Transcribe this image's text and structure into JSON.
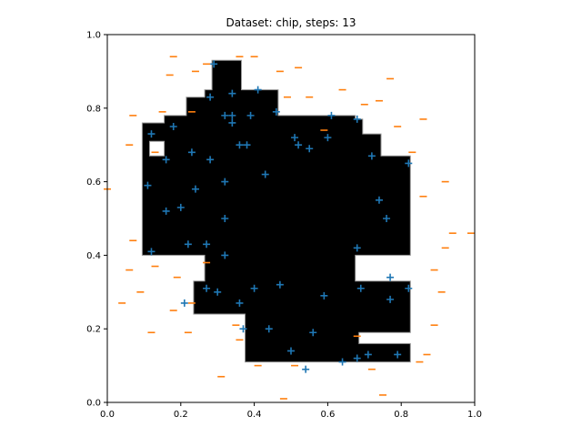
{
  "chart_data": {
    "type": "scatter",
    "title": "Dataset: chip, steps: 13",
    "xlim": [
      0.0,
      1.0
    ],
    "ylim": [
      0.0,
      1.0
    ],
    "xticks": [
      "0.0",
      "0.2",
      "0.4",
      "0.6",
      "0.8",
      "1.0"
    ],
    "yticks": [
      "0.0",
      "0.2",
      "0.4",
      "0.6",
      "0.8",
      "1.0"
    ],
    "grid": false,
    "colors": {
      "plus": "#1f77b4",
      "minus": "#ff7f0e",
      "region": "#000000",
      "region_edge": "#999999"
    },
    "decision_region": {
      "polygon": [
        [
          0.285,
          0.93
        ],
        [
          0.365,
          0.93
        ],
        [
          0.365,
          0.85
        ],
        [
          0.465,
          0.85
        ],
        [
          0.465,
          0.78
        ],
        [
          0.675,
          0.78
        ],
        [
          0.675,
          0.77
        ],
        [
          0.695,
          0.77
        ],
        [
          0.695,
          0.73
        ],
        [
          0.745,
          0.73
        ],
        [
          0.745,
          0.67
        ],
        [
          0.825,
          0.67
        ],
        [
          0.825,
          0.4
        ],
        [
          0.675,
          0.4
        ],
        [
          0.675,
          0.33
        ],
        [
          0.825,
          0.33
        ],
        [
          0.825,
          0.19
        ],
        [
          0.685,
          0.19
        ],
        [
          0.685,
          0.16
        ],
        [
          0.825,
          0.16
        ],
        [
          0.825,
          0.11
        ],
        [
          0.375,
          0.11
        ],
        [
          0.375,
          0.24
        ],
        [
          0.235,
          0.24
        ],
        [
          0.235,
          0.33
        ],
        [
          0.265,
          0.33
        ],
        [
          0.265,
          0.4
        ],
        [
          0.095,
          0.4
        ],
        [
          0.095,
          0.76
        ],
        [
          0.155,
          0.76
        ],
        [
          0.155,
          0.78
        ],
        [
          0.215,
          0.78
        ],
        [
          0.215,
          0.83
        ],
        [
          0.265,
          0.83
        ],
        [
          0.265,
          0.85
        ],
        [
          0.285,
          0.85
        ]
      ],
      "holes": [
        [
          [
            0.115,
            0.71
          ],
          [
            0.155,
            0.71
          ],
          [
            0.155,
            0.67
          ],
          [
            0.115,
            0.67
          ]
        ]
      ]
    },
    "series": [
      {
        "marker": "+",
        "points": [
          [
            0.29,
            0.92
          ],
          [
            0.41,
            0.85
          ],
          [
            0.34,
            0.84
          ],
          [
            0.28,
            0.83
          ],
          [
            0.32,
            0.78
          ],
          [
            0.34,
            0.78
          ],
          [
            0.39,
            0.78
          ],
          [
            0.46,
            0.79
          ],
          [
            0.61,
            0.78
          ],
          [
            0.68,
            0.77
          ],
          [
            0.34,
            0.76
          ],
          [
            0.18,
            0.75
          ],
          [
            0.12,
            0.73
          ],
          [
            0.6,
            0.72
          ],
          [
            0.51,
            0.72
          ],
          [
            0.52,
            0.7
          ],
          [
            0.55,
            0.69
          ],
          [
            0.36,
            0.7
          ],
          [
            0.38,
            0.7
          ],
          [
            0.23,
            0.68
          ],
          [
            0.72,
            0.67
          ],
          [
            0.28,
            0.66
          ],
          [
            0.16,
            0.66
          ],
          [
            0.82,
            0.65
          ],
          [
            0.43,
            0.62
          ],
          [
            0.32,
            0.6
          ],
          [
            0.11,
            0.59
          ],
          [
            0.24,
            0.58
          ],
          [
            0.74,
            0.55
          ],
          [
            0.16,
            0.52
          ],
          [
            0.2,
            0.53
          ],
          [
            0.32,
            0.5
          ],
          [
            0.76,
            0.5
          ],
          [
            0.22,
            0.43
          ],
          [
            0.27,
            0.43
          ],
          [
            0.12,
            0.41
          ],
          [
            0.32,
            0.4
          ],
          [
            0.68,
            0.42
          ],
          [
            0.77,
            0.34
          ],
          [
            0.47,
            0.32
          ],
          [
            0.4,
            0.31
          ],
          [
            0.27,
            0.31
          ],
          [
            0.3,
            0.3
          ],
          [
            0.69,
            0.31
          ],
          [
            0.82,
            0.31
          ],
          [
            0.59,
            0.29
          ],
          [
            0.77,
            0.28
          ],
          [
            0.36,
            0.27
          ],
          [
            0.21,
            0.27
          ],
          [
            0.37,
            0.2
          ],
          [
            0.44,
            0.2
          ],
          [
            0.56,
            0.19
          ],
          [
            0.5,
            0.14
          ],
          [
            0.71,
            0.13
          ],
          [
            0.68,
            0.12
          ],
          [
            0.79,
            0.13
          ],
          [
            0.64,
            0.11
          ],
          [
            0.54,
            0.09
          ]
        ]
      },
      {
        "marker": "_",
        "points": [
          [
            0.18,
            0.94
          ],
          [
            0.36,
            0.94
          ],
          [
            0.4,
            0.94
          ],
          [
            0.27,
            0.92
          ],
          [
            0.17,
            0.89
          ],
          [
            0.24,
            0.9
          ],
          [
            0.47,
            0.9
          ],
          [
            0.52,
            0.91
          ],
          [
            0.77,
            0.88
          ],
          [
            0.64,
            0.85
          ],
          [
            0.49,
            0.83
          ],
          [
            0.55,
            0.83
          ],
          [
            0.7,
            0.81
          ],
          [
            0.74,
            0.82
          ],
          [
            0.15,
            0.79
          ],
          [
            0.23,
            0.79
          ],
          [
            0.07,
            0.78
          ],
          [
            0.86,
            0.77
          ],
          [
            0.79,
            0.75
          ],
          [
            0.59,
            0.74
          ],
          [
            0.06,
            0.7
          ],
          [
            0.13,
            0.68
          ],
          [
            0.83,
            0.68
          ],
          [
            0.0,
            0.58
          ],
          [
            0.92,
            0.6
          ],
          [
            0.86,
            0.56
          ],
          [
            0.94,
            0.46
          ],
          [
            0.07,
            0.44
          ],
          [
            0.92,
            0.42
          ],
          [
            0.99,
            0.46
          ],
          [
            0.06,
            0.36
          ],
          [
            0.13,
            0.37
          ],
          [
            0.27,
            0.38
          ],
          [
            0.89,
            0.36
          ],
          [
            0.19,
            0.34
          ],
          [
            0.09,
            0.3
          ],
          [
            0.91,
            0.3
          ],
          [
            0.04,
            0.27
          ],
          [
            0.23,
            0.27
          ],
          [
            0.18,
            0.25
          ],
          [
            0.89,
            0.21
          ],
          [
            0.35,
            0.21
          ],
          [
            0.12,
            0.19
          ],
          [
            0.22,
            0.19
          ],
          [
            0.36,
            0.17
          ],
          [
            0.68,
            0.18
          ],
          [
            0.87,
            0.13
          ],
          [
            0.85,
            0.11
          ],
          [
            0.41,
            0.1
          ],
          [
            0.51,
            0.1
          ],
          [
            0.72,
            0.09
          ],
          [
            0.31,
            0.07
          ],
          [
            0.48,
            0.01
          ],
          [
            0.75,
            0.02
          ]
        ]
      }
    ]
  }
}
